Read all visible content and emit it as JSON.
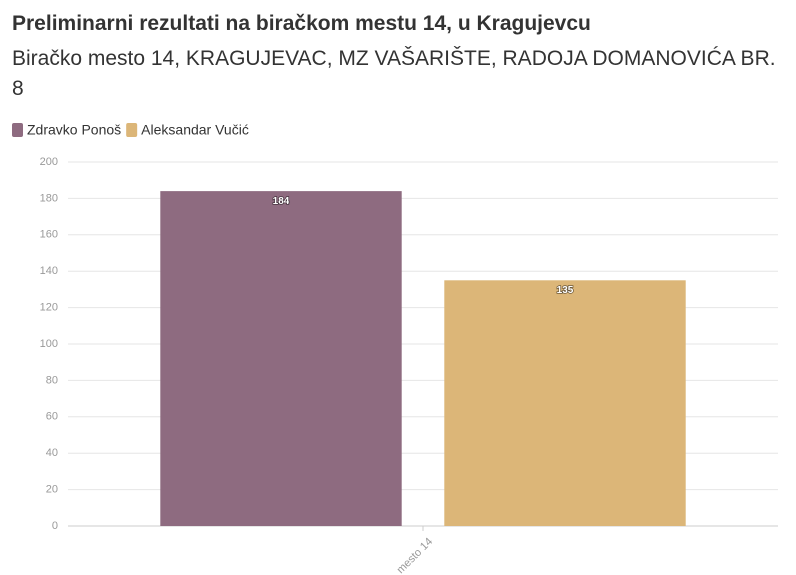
{
  "chart_data": {
    "type": "bar",
    "title": "Preliminarni rezultati na biračkom mestu 14, u Kragujevcu",
    "subtitle": "Biračko mesto 14, KRAGUJEVAC, MZ VAŠARIŠTE, RADOJA DOMANOVIĆA BR. 8",
    "categories": [
      "mesto 14"
    ],
    "series": [
      {
        "name": "Zdravko Ponoš",
        "color": "#8e6b80",
        "values": [
          184
        ]
      },
      {
        "name": "Aleksandar Vučić",
        "color": "#dcb678",
        "values": [
          135
        ]
      }
    ],
    "ylim": [
      0,
      200
    ],
    "yticks": [
      0,
      20,
      40,
      60,
      80,
      100,
      120,
      140,
      160,
      180,
      200
    ],
    "grid": true
  }
}
